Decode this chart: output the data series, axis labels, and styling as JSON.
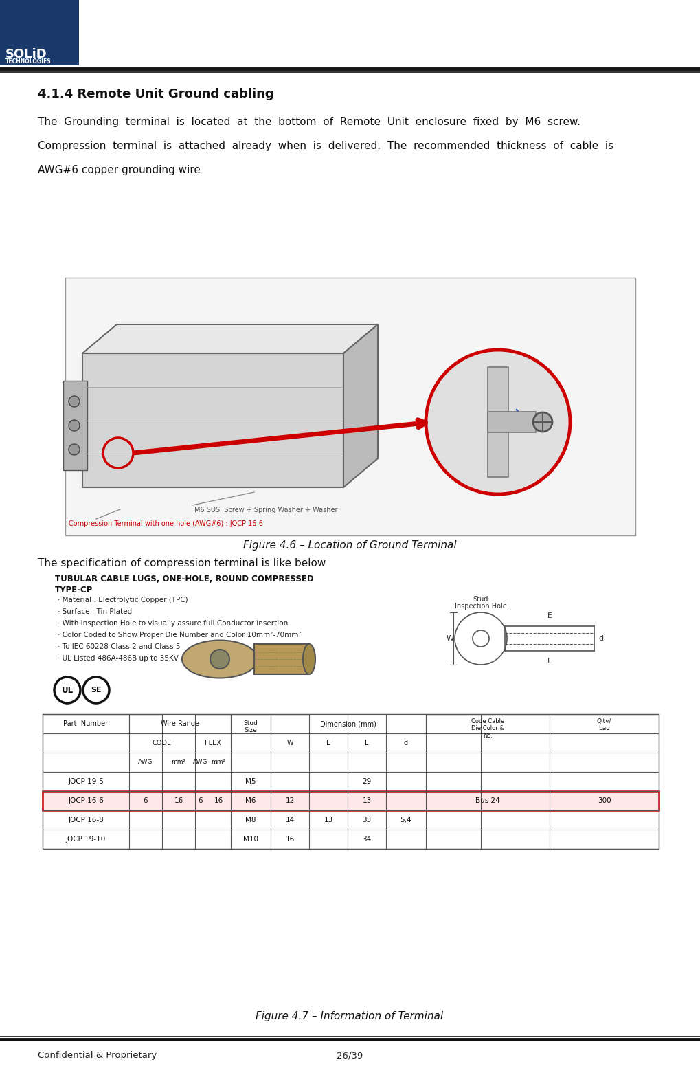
{
  "page_width": 10.19,
  "page_height": 15.64,
  "bg_color": "#ffffff",
  "header_bar_color": "#1a3a6b",
  "logo_text": "SOLiD",
  "logo_sub": "TECHNOLOGIES",
  "footer_left": "Confidential & Proprietary",
  "footer_right": "26/39",
  "section_title": "4.1.4 Remote Unit Ground cabling",
  "body_text_line1": "The  Grounding  terminal  is  located  at  the  bottom  of  Remote  Unit  enclosure  fixed  by  M6  screw.",
  "body_text_line2": "Compression  terminal  is  attached  already  when  is  delivered.  The  recommended  thickness  of  cable  is",
  "body_text_line3": "AWG#6 copper grounding wire",
  "fig1_caption": "Figure 4.6 – Location of Ground Terminal",
  "fig2_caption": "Figure 4.7 – Information of Terminal",
  "spec_text_line1": "The specification of compression terminal is like below",
  "tubular_title1": "TUBULAR CABLE LUGS, ONE-HOLE, ROUND COMPRESSED",
  "tubular_title2": "TYPE-CP",
  "bullets": [
    "· Material : Electrolytic Copper (TPC)",
    "· Surface : Tin Plated",
    "· With Inspection Hole to visually assure full Conductor insertion.",
    "· Color Coded to Show Proper Die Number and Color 10mm²-70mm²",
    "· To IEC 60228 Class 2 and Class 5",
    "· UL Listed 486A-486B up to 35KV"
  ],
  "label_m6screw": "M6 SUS  Screw + Spring Washer + Washer",
  "label_compression": "Compression Terminal with one hole (AWG#6) : JOCP 16-6",
  "table_data": [
    {
      "name": "JOCP 19-5",
      "awg_c": "",
      "mm2_c": "",
      "awg_f": "",
      "mm2_f": "",
      "stud": "M5",
      "W": "",
      "E": "",
      "L": "29",
      "d": "",
      "color": "",
      "qty": ""
    },
    {
      "name": "JOCP 16-6",
      "awg_c": "6",
      "mm2_c": "16",
      "awg_f": "6",
      "mm2_f": "16",
      "stud": "M6",
      "W": "12",
      "E": "",
      "L": "13",
      "d": "",
      "color": "Bus 24",
      "qty": "300"
    },
    {
      "name": "JOCP 16-8",
      "awg_c": "",
      "mm2_c": "",
      "awg_f": "",
      "mm2_f": "",
      "stud": "M8",
      "W": "14",
      "E": "13",
      "L": "33",
      "d": "5,4",
      "color": "",
      "qty": ""
    },
    {
      "name": "JOCP 19-10",
      "awg_c": "",
      "mm2_c": "",
      "awg_f": "",
      "mm2_f": "",
      "stud": "M10",
      "W": "16",
      "E": "",
      "L": "34",
      "d": "",
      "color": "",
      "qty": ""
    }
  ],
  "title_fontsize": 13,
  "body_fontsize": 11,
  "caption_fontsize": 11,
  "footer_fontsize": 9.5
}
